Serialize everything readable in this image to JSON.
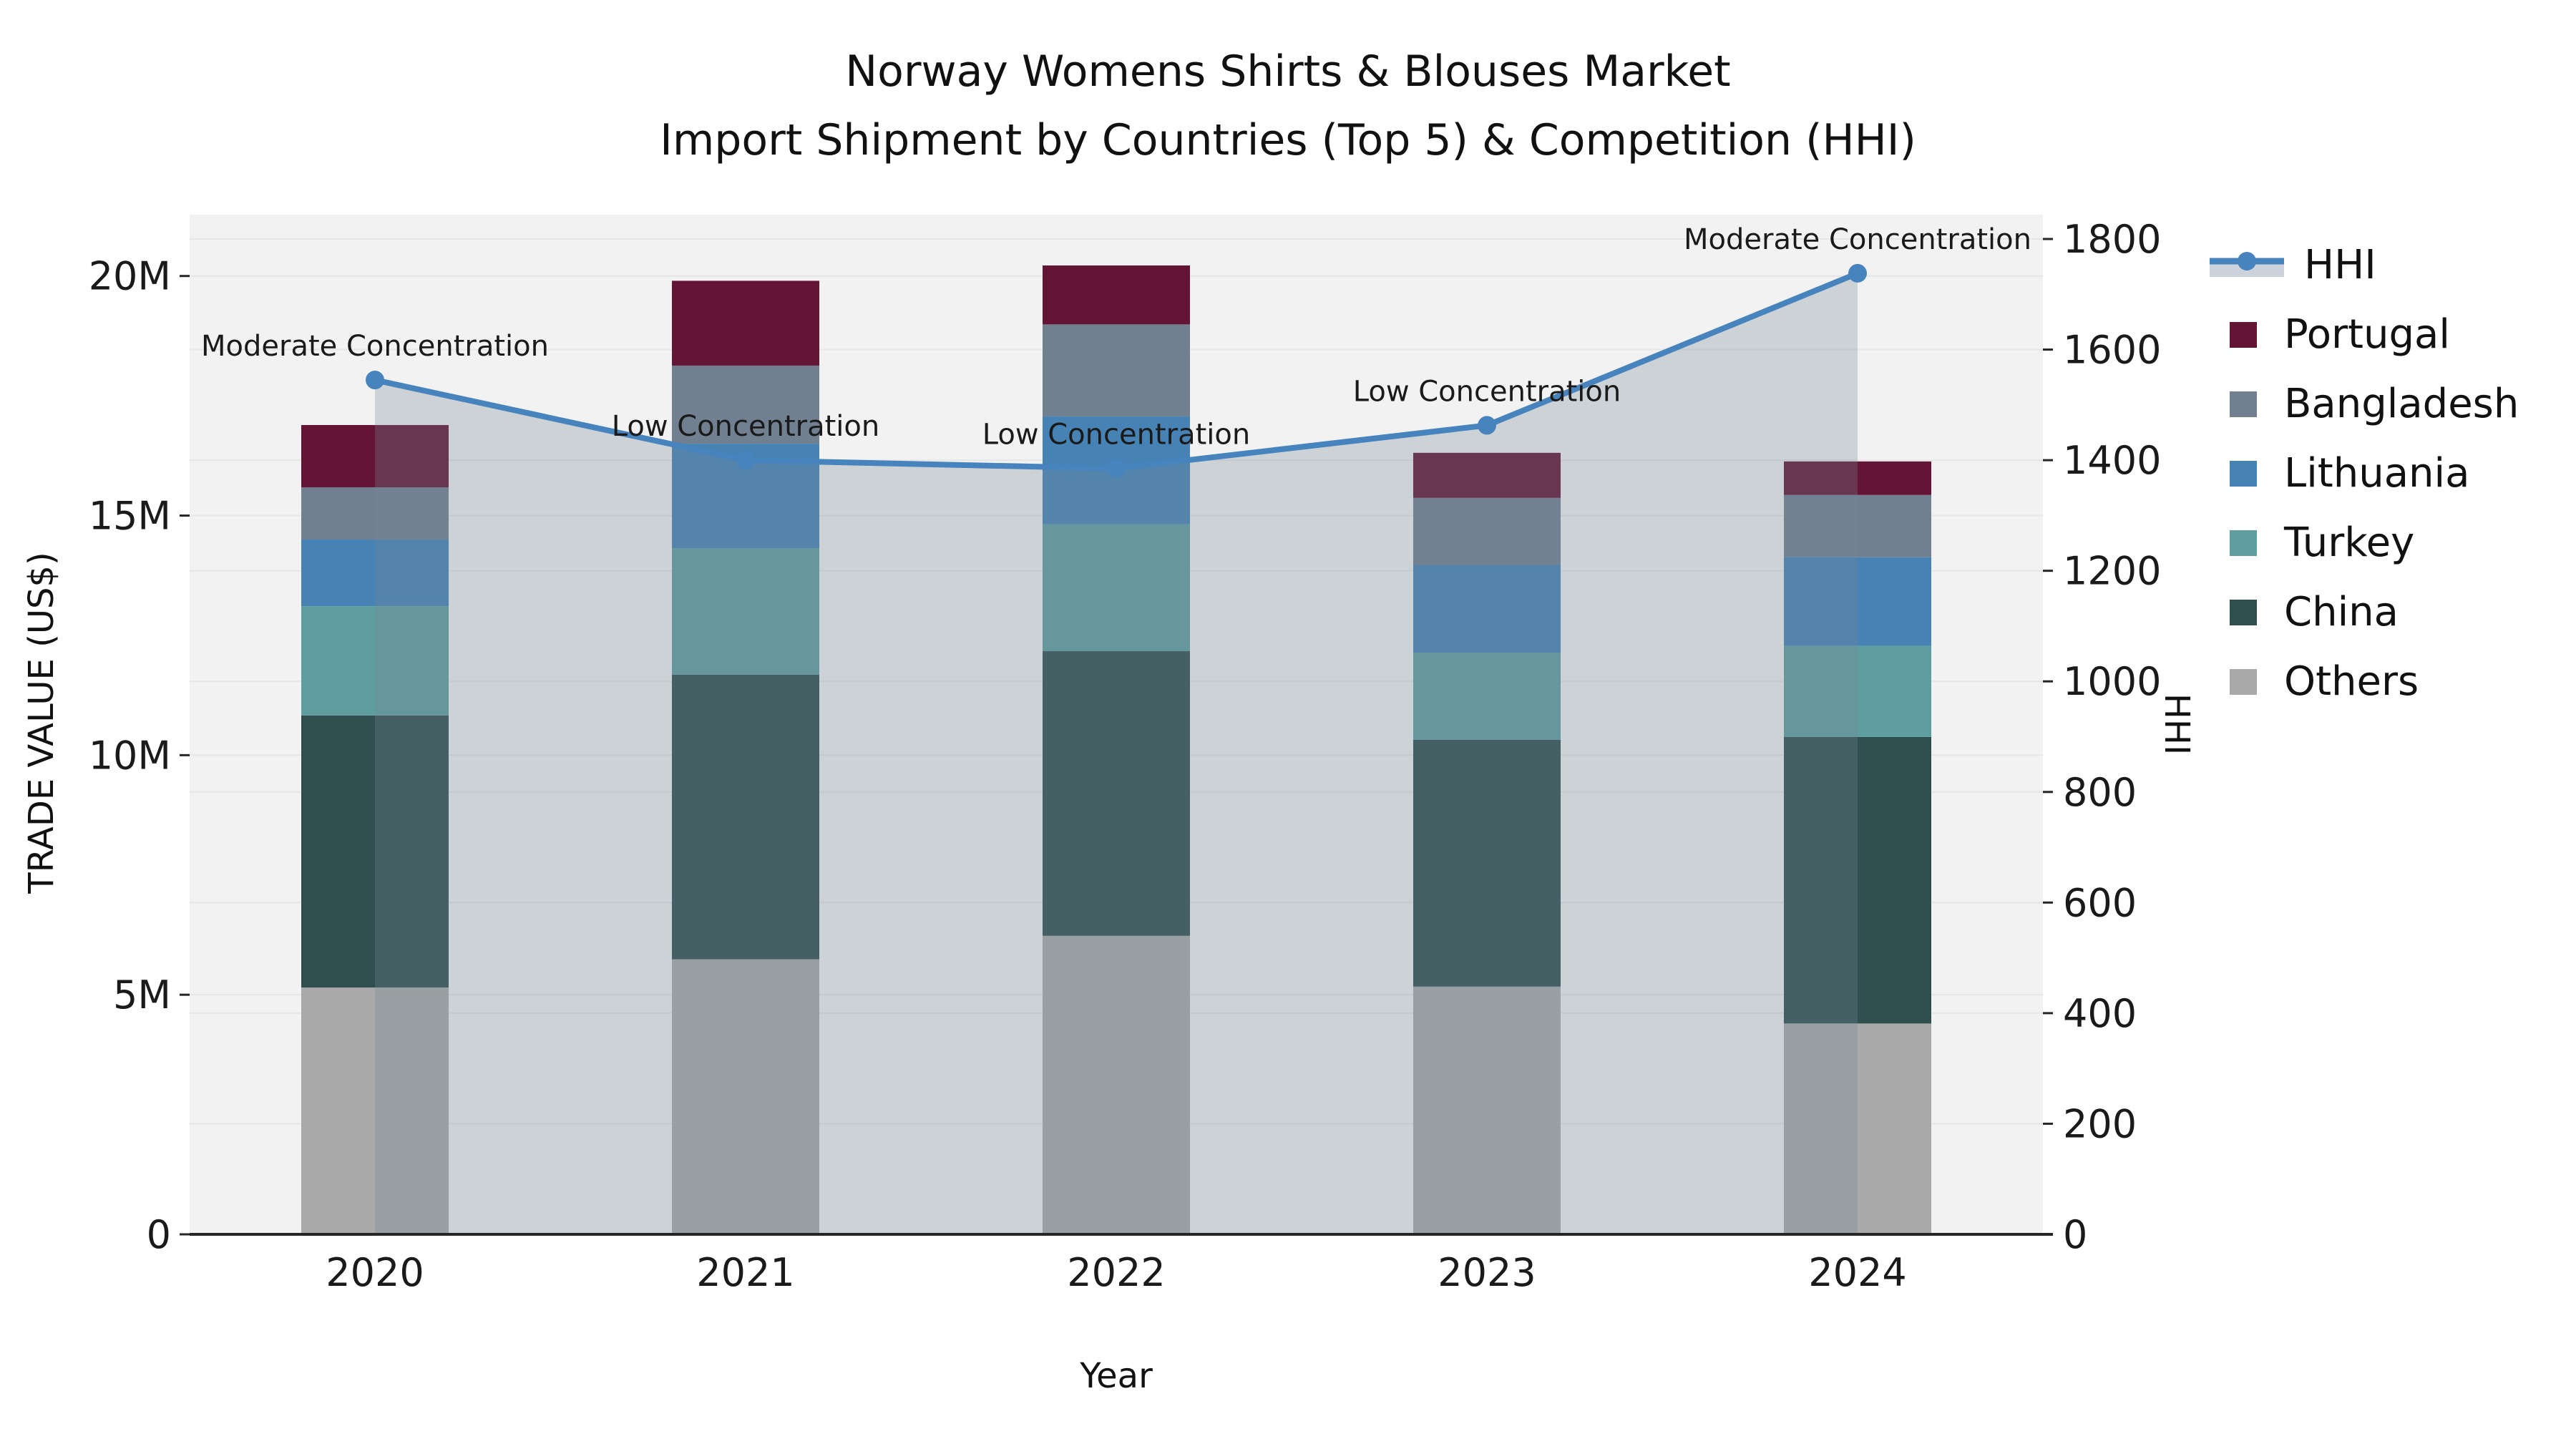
{
  "title": {
    "line1": "Norway Womens Shirts & Blouses Market",
    "line2": "Import Shipment by Countries (Top 5) & Competition (HHI)"
  },
  "axes": {
    "x": {
      "label": "Year",
      "categories": [
        "2020",
        "2021",
        "2022",
        "2023",
        "2024"
      ]
    },
    "y_left": {
      "label": "TRADE VALUE (US$)",
      "tick_labels": [
        "0",
        "5M",
        "10M",
        "15M",
        "20M"
      ],
      "tick_values_musd": [
        0,
        5,
        10,
        15,
        20
      ]
    },
    "y_right": {
      "label": "HHI",
      "tick_values": [
        0,
        200,
        400,
        600,
        800,
        1000,
        1200,
        1400,
        1600,
        1800
      ]
    }
  },
  "legend": [
    {
      "label": "HHI",
      "type": "line-area",
      "line_color": "#4783bd",
      "band_color": "#ccd3dd"
    },
    {
      "label": "Portugal",
      "type": "swatch",
      "color": "#641434"
    },
    {
      "label": "Bangladesh",
      "type": "swatch",
      "color": "#708090"
    },
    {
      "label": "Lithuania",
      "type": "swatch",
      "color": "#4682b4"
    },
    {
      "label": "Turkey",
      "type": "swatch",
      "color": "#5f9ea0"
    },
    {
      "label": "China",
      "type": "swatch",
      "color": "#2f4f4f"
    },
    {
      "label": "Others",
      "type": "swatch",
      "color": "#a9a9a9"
    }
  ],
  "chart_data": {
    "type": "bar+line",
    "categories": [
      "2020",
      "2021",
      "2022",
      "2023",
      "2024"
    ],
    "unit": "Million US$ (left axis), HHI index (right axis)",
    "stack_order_bottom_to_top": [
      "Others",
      "China",
      "Turkey",
      "Lithuania",
      "Bangladesh",
      "Portugal"
    ],
    "series": [
      {
        "name": "Others",
        "color": "#a9a9a9",
        "values_musd": [
          5.15,
          5.74,
          6.23,
          5.17,
          4.4
        ]
      },
      {
        "name": "China",
        "color": "#2f4f4f",
        "values_musd": [
          5.68,
          5.94,
          5.94,
          5.15,
          5.98
        ]
      },
      {
        "name": "Turkey",
        "color": "#5f9ea0",
        "values_musd": [
          2.28,
          2.64,
          2.65,
          1.82,
          1.9
        ]
      },
      {
        "name": "Lithuania",
        "color": "#4682b4",
        "values_musd": [
          1.39,
          2.18,
          2.25,
          1.83,
          1.85
        ]
      },
      {
        "name": "Bangladesh",
        "color": "#708090",
        "values_musd": [
          1.09,
          1.63,
          1.92,
          1.4,
          1.3
        ]
      },
      {
        "name": "Portugal",
        "color": "#641434",
        "values_musd": [
          1.3,
          1.77,
          1.23,
          0.94,
          0.7
        ]
      }
    ],
    "bar_totals_musd": [
      16.89,
      19.9,
      20.22,
      16.31,
      16.13
    ],
    "hhi": {
      "name": "HHI",
      "axis": "right",
      "color": "#4783bd",
      "area_color": "#778899",
      "area_opacity": 0.3,
      "values": [
        1545,
        1400,
        1385,
        1463,
        1738
      ]
    },
    "annotations": [
      {
        "category": "2020",
        "text": "Moderate Concentration"
      },
      {
        "category": "2021",
        "text": "Low Concentration"
      },
      {
        "category": "2022",
        "text": "Low Concentration"
      },
      {
        "category": "2023",
        "text": "Low Concentration"
      },
      {
        "category": "2024",
        "text": "Moderate Concentration"
      }
    ],
    "ylim_left_musd": [
      0,
      21.28
    ],
    "ylim_right": [
      0,
      1844
    ],
    "grid": true,
    "legend_position": "outside-right-top"
  },
  "colors": {
    "plot_bg": "#f2f2f2",
    "grid": "#e6e6e6",
    "axis_line": "#262626",
    "text": "#1a1a1a",
    "page_bg": "#ffffff"
  }
}
